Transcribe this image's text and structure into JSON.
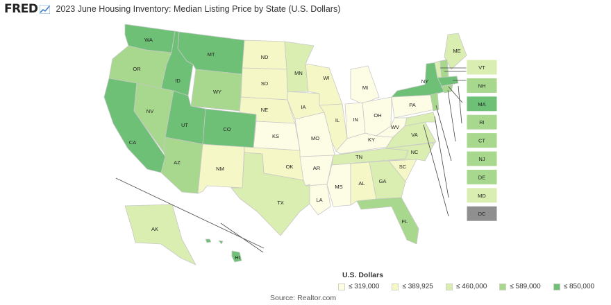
{
  "header": {
    "logo_text": "FRED",
    "title": "2023 June Housing Inventory: Median Listing Price by State (U.S. Dollars)"
  },
  "colors": {
    "bin1": "#fdfde5",
    "bin2": "#f5f8c6",
    "bin3": "#d9eeb0",
    "bin4": "#a7d88e",
    "bin5": "#6fc077",
    "nodata": "#8f8f8f",
    "border": "#c8c8c8",
    "logo": "#6fa8dc"
  },
  "legend": {
    "title": "U.S. Dollars",
    "items": [
      {
        "label": "≤ 319,000",
        "color": "#fdfde5"
      },
      {
        "label": "≤ 389,925",
        "color": "#f5f8c6"
      },
      {
        "label": "≤ 460,000",
        "color": "#d9eeb0"
      },
      {
        "label": "≤ 589,000",
        "color": "#a7d88e"
      },
      {
        "label": "≤ 850,000",
        "color": "#6fc077"
      }
    ]
  },
  "source": "Source: Realtor.com",
  "states": {
    "WA": {
      "label": "WA",
      "bin": 5
    },
    "OR": {
      "label": "OR",
      "bin": 4
    },
    "CA": {
      "label": "CA",
      "bin": 5
    },
    "ID": {
      "label": "ID",
      "bin": 5
    },
    "NV": {
      "label": "NV",
      "bin": 4
    },
    "MT": {
      "label": "MT",
      "bin": 5
    },
    "WY": {
      "label": "WY",
      "bin": 4
    },
    "UT": {
      "label": "UT",
      "bin": 5
    },
    "AZ": {
      "label": "AZ",
      "bin": 4
    },
    "CO": {
      "label": "CO",
      "bin": 5
    },
    "NM": {
      "label": "NM",
      "bin": 2
    },
    "ND": {
      "label": "ND",
      "bin": 2
    },
    "SD": {
      "label": "SD",
      "bin": 2
    },
    "NE": {
      "label": "NE",
      "bin": 2
    },
    "KS": {
      "label": "KS",
      "bin": 1
    },
    "OK": {
      "label": "OK",
      "bin": 2
    },
    "TX": {
      "label": "TX",
      "bin": 3
    },
    "MN": {
      "label": "MN",
      "bin": 3
    },
    "IA": {
      "label": "IA",
      "bin": 2
    },
    "MO": {
      "label": "MO",
      "bin": 1
    },
    "AR": {
      "label": "AR",
      "bin": 1
    },
    "LA": {
      "label": "LA",
      "bin": 1
    },
    "WI": {
      "label": "WI",
      "bin": 2
    },
    "IL": {
      "label": "IL",
      "bin": 2
    },
    "MI": {
      "label": "MI",
      "bin": 1
    },
    "IN": {
      "label": "IN",
      "bin": 1
    },
    "OH": {
      "label": "OH",
      "bin": 1
    },
    "KY": {
      "label": "KY",
      "bin": 1
    },
    "TN": {
      "label": "TN",
      "bin": 3
    },
    "MS": {
      "label": "MS",
      "bin": 1
    },
    "AL": {
      "label": "AL",
      "bin": 2
    },
    "GA": {
      "label": "GA",
      "bin": 3
    },
    "FL": {
      "label": "FL",
      "bin": 4
    },
    "SC": {
      "label": "SC",
      "bin": 2
    },
    "NC": {
      "label": "NC",
      "bin": 3
    },
    "VA": {
      "label": "VA",
      "bin": 3
    },
    "WV": {
      "label": "WV",
      "bin": 1
    },
    "PA": {
      "label": "PA",
      "bin": 1
    },
    "NY": {
      "label": "NY",
      "bin": 5
    },
    "ME": {
      "label": "ME",
      "bin": 3
    },
    "AK": {
      "label": "AK",
      "bin": 3
    },
    "HI": {
      "label": "HI",
      "bin": 5
    }
  },
  "callouts": [
    {
      "label": "VT",
      "bin": 3
    },
    {
      "label": "NH",
      "bin": 4
    },
    {
      "label": "MA",
      "bin": 5
    },
    {
      "label": "RI",
      "bin": 4
    },
    {
      "label": "CT",
      "bin": 4
    },
    {
      "label": "NJ",
      "bin": 4
    },
    {
      "label": "DE",
      "bin": 4
    },
    {
      "label": "MD",
      "bin": 3
    },
    {
      "label": "DC",
      "bin": 0
    }
  ]
}
